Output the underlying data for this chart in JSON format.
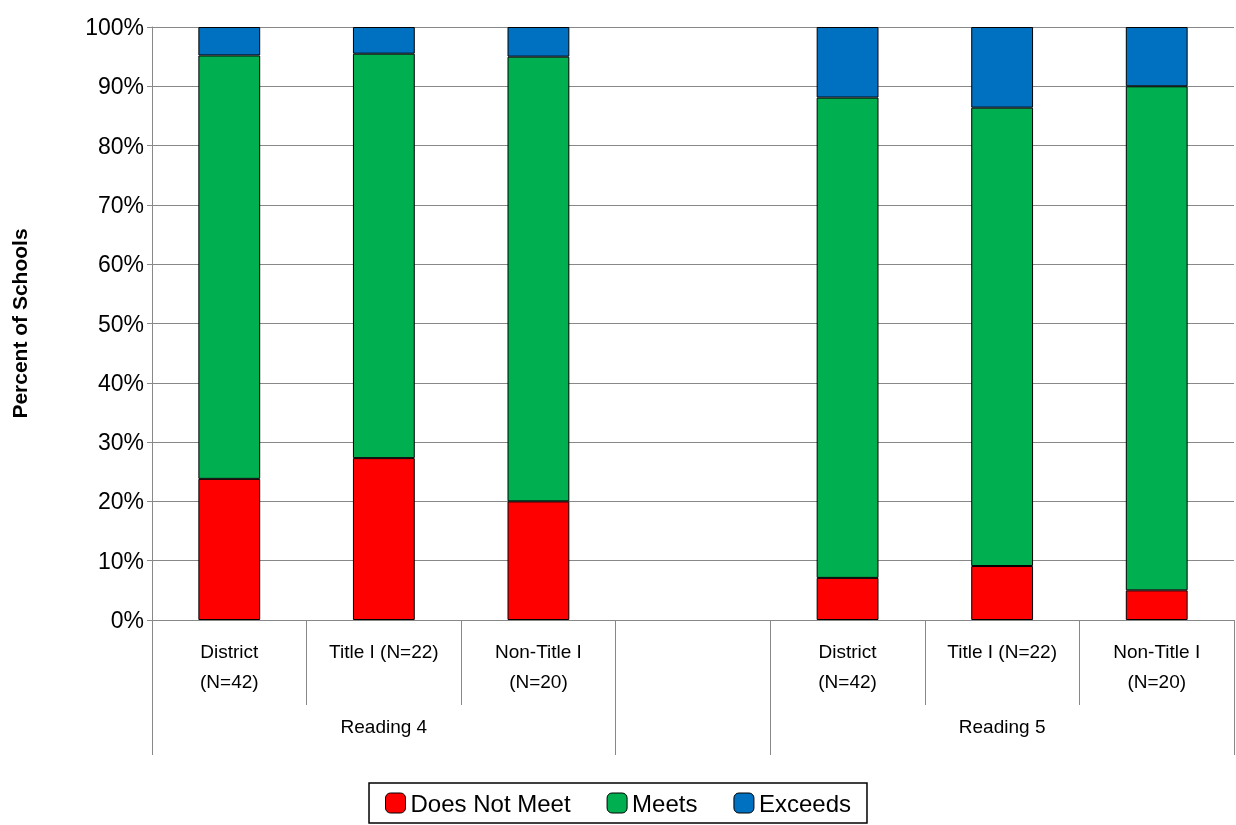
{
  "chart_data": {
    "type": "bar",
    "stacked": true,
    "ylabel": "Percent of Schools",
    "categories": [
      "District\n(N=42)",
      "Title I (N=22)",
      "Non-Title I\n(N=20)",
      null,
      "District\n(N=42)",
      "Title I (N=22)",
      "Non-Title I\n(N=20)"
    ],
    "series": [
      {
        "name": "Does Not Meet",
        "color": "#ff0000",
        "values": [
          23.8,
          27.3,
          20,
          null,
          7.1,
          9.1,
          5
        ]
      },
      {
        "name": "Meets",
        "color": "#00b050",
        "values": [
          71.4,
          68.2,
          75,
          null,
          81,
          77.3,
          85
        ]
      },
      {
        "name": "Exceeds",
        "color": "#0070c0",
        "values": [
          4.8,
          4.5,
          5,
          null,
          11.9,
          13.6,
          10
        ]
      }
    ],
    "ylim": [
      0,
      100
    ],
    "yticks": [
      {
        "value": 0,
        "label": "0%"
      },
      {
        "value": 10,
        "label": "10%"
      },
      {
        "value": 20,
        "label": "20%"
      },
      {
        "value": 30,
        "label": "30%"
      },
      {
        "value": 40,
        "label": "40%"
      },
      {
        "value": 50,
        "label": "50%"
      },
      {
        "value": 60,
        "label": "60%"
      },
      {
        "value": 70,
        "label": "70%"
      },
      {
        "value": 80,
        "label": "80%"
      },
      {
        "value": 90,
        "label": "90%"
      },
      {
        "value": 100,
        "label": "100%"
      }
    ],
    "annotations": [
      "Reading 4",
      "Reading 5"
    ],
    "grid": "y",
    "legend": "bottom"
  }
}
